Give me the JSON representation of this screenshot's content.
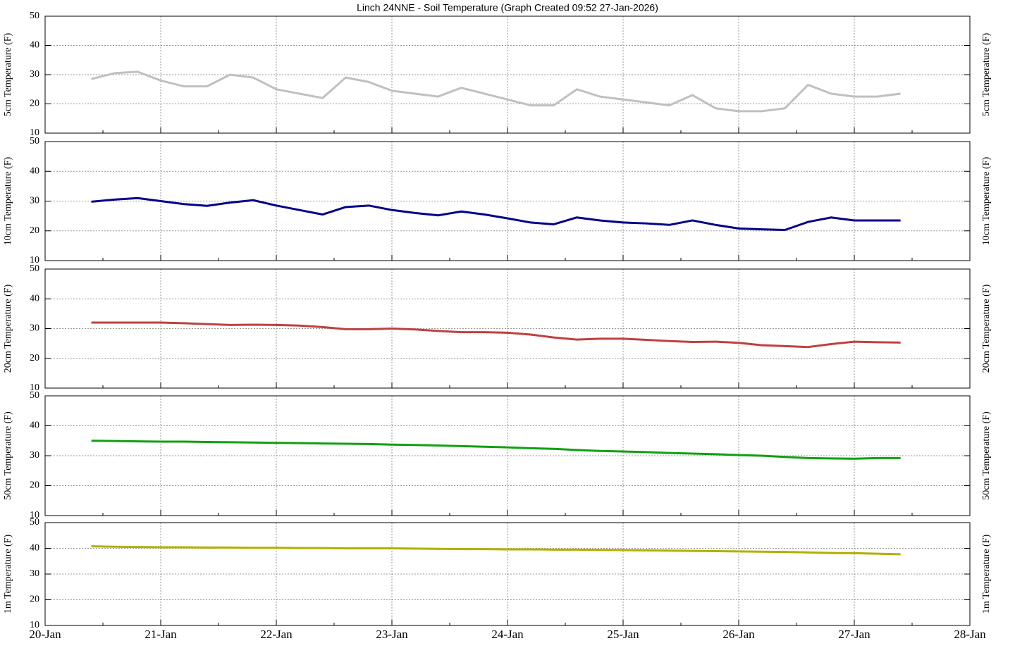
{
  "chart_data": [
    {
      "type": "line",
      "title": "Linch 24NNE - Soil Temperature (Graph Created 09:52 27-Jan-2026)",
      "ylabel": "5cm Temperature (F)",
      "x": [
        0.4,
        0.6,
        0.8,
        1.0,
        1.2,
        1.4,
        1.6,
        1.8,
        2.0,
        2.2,
        2.4,
        2.6,
        2.8,
        3.0,
        3.2,
        3.4,
        3.6,
        3.8,
        4.0,
        4.2,
        4.4,
        4.6,
        4.8,
        5.0,
        5.2,
        5.4,
        5.6,
        5.8,
        6.0,
        6.2,
        6.4,
        6.6,
        6.8,
        7.0,
        7.2,
        7.4
      ],
      "series": [
        {
          "color": "#c0c0c0",
          "values": [
            28.5,
            30.5,
            31,
            28,
            26,
            26,
            30,
            29,
            25,
            23.5,
            22,
            29,
            27.5,
            24.5,
            23.5,
            22.5,
            25.5,
            23.5,
            21.5,
            19.5,
            19.5,
            25,
            22.5,
            21.5,
            20.5,
            19.5,
            23,
            18.5,
            17.5,
            17.5,
            18.5,
            26.5,
            23.5,
            22.5,
            22.5,
            23.5
          ]
        }
      ],
      "xlim": [
        0,
        8
      ],
      "xticks": [
        0,
        1,
        2,
        3,
        4,
        5,
        6,
        7,
        8
      ],
      "ylim": [
        10,
        50
      ],
      "yticks": [
        10,
        20,
        30,
        40,
        50
      ],
      "grid": true
    },
    {
      "type": "line",
      "ylabel": "10cm Temperature (F)",
      "x": [
        0.4,
        0.6,
        0.8,
        1.0,
        1.2,
        1.4,
        1.6,
        1.8,
        2.0,
        2.2,
        2.4,
        2.6,
        2.8,
        3.0,
        3.2,
        3.4,
        3.6,
        3.8,
        4.0,
        4.2,
        4.4,
        4.6,
        4.8,
        5.0,
        5.2,
        5.4,
        5.6,
        5.8,
        6.0,
        6.2,
        6.4,
        6.6,
        6.8,
        7.0,
        7.2,
        7.4
      ],
      "series": [
        {
          "color": "#00008b",
          "values": [
            29.8,
            30.5,
            31,
            30,
            29,
            28.4,
            29.5,
            30.3,
            28.5,
            27,
            25.5,
            28,
            28.5,
            27,
            26,
            25.2,
            26.5,
            25.5,
            24.2,
            22.8,
            22.2,
            24.5,
            23.5,
            22.8,
            22.5,
            22,
            23.5,
            22,
            20.8,
            20.5,
            20.3,
            23,
            24.5,
            23.5,
            23.5,
            23.5
          ]
        }
      ],
      "xlim": [
        0,
        8
      ],
      "xticks": [
        0,
        1,
        2,
        3,
        4,
        5,
        6,
        7,
        8
      ],
      "ylim": [
        10,
        50
      ],
      "yticks": [
        10,
        20,
        30,
        40,
        50
      ],
      "grid": true
    },
    {
      "type": "line",
      "ylabel": "20cm Temperature (F)",
      "x": [
        0.4,
        0.6,
        0.8,
        1.0,
        1.2,
        1.4,
        1.6,
        1.8,
        2.0,
        2.2,
        2.4,
        2.6,
        2.8,
        3.0,
        3.2,
        3.4,
        3.6,
        3.8,
        4.0,
        4.2,
        4.4,
        4.6,
        4.8,
        5.0,
        5.2,
        5.4,
        5.6,
        5.8,
        6.0,
        6.2,
        6.4,
        6.6,
        6.8,
        7.0,
        7.2,
        7.4
      ],
      "series": [
        {
          "color": "#c04040",
          "values": [
            32,
            32,
            32,
            32,
            31.8,
            31.5,
            31.2,
            31.3,
            31.2,
            31,
            30.5,
            29.8,
            29.8,
            30,
            29.7,
            29.2,
            28.8,
            28.8,
            28.6,
            28,
            27,
            26.3,
            26.6,
            26.6,
            26.2,
            25.8,
            25.5,
            25.6,
            25.2,
            24.4,
            24.1,
            23.8,
            24.8,
            25.6,
            25.4,
            25.3
          ]
        }
      ],
      "xlim": [
        0,
        8
      ],
      "xticks": [
        0,
        1,
        2,
        3,
        4,
        5,
        6,
        7,
        8
      ],
      "ylim": [
        10,
        50
      ],
      "yticks": [
        10,
        20,
        30,
        40,
        50
      ],
      "grid": true
    },
    {
      "type": "line",
      "ylabel": "50cm Temperature (F)",
      "x": [
        0.4,
        0.6,
        0.8,
        1.0,
        1.2,
        1.4,
        1.6,
        1.8,
        2.0,
        2.2,
        2.4,
        2.6,
        2.8,
        3.0,
        3.2,
        3.4,
        3.6,
        3.8,
        4.0,
        4.2,
        4.4,
        4.6,
        4.8,
        5.0,
        5.2,
        5.4,
        5.6,
        5.8,
        6.0,
        6.2,
        6.4,
        6.6,
        6.8,
        7.0,
        7.2,
        7.4
      ],
      "series": [
        {
          "color": "#10a010",
          "values": [
            35,
            34.9,
            34.8,
            34.7,
            34.7,
            34.6,
            34.5,
            34.4,
            34.3,
            34.2,
            34.1,
            34,
            33.9,
            33.7,
            33.6,
            33.4,
            33.2,
            33,
            32.8,
            32.5,
            32.3,
            31.9,
            31.6,
            31.4,
            31.2,
            30.9,
            30.7,
            30.5,
            30.2,
            30,
            29.6,
            29.2,
            29.1,
            29,
            29.2,
            29.2
          ]
        }
      ],
      "xlim": [
        0,
        8
      ],
      "xticks": [
        0,
        1,
        2,
        3,
        4,
        5,
        6,
        7,
        8
      ],
      "ylim": [
        10,
        50
      ],
      "yticks": [
        10,
        20,
        30,
        40,
        50
      ],
      "grid": true
    },
    {
      "type": "line",
      "ylabel": "1m Temperature (F)",
      "x": [
        0.4,
        0.6,
        0.8,
        1.0,
        1.2,
        1.4,
        1.6,
        1.8,
        2.0,
        2.2,
        2.4,
        2.6,
        2.8,
        3.0,
        3.2,
        3.4,
        3.6,
        3.8,
        4.0,
        4.2,
        4.4,
        4.6,
        4.8,
        5.0,
        5.2,
        5.4,
        5.6,
        5.8,
        6.0,
        6.2,
        6.4,
        6.6,
        6.8,
        7.0,
        7.2,
        7.4
      ],
      "series": [
        {
          "color": "#b0b000",
          "values": [
            40.8,
            40.6,
            40.5,
            40.4,
            40.4,
            40.3,
            40.3,
            40.2,
            40.2,
            40.1,
            40.1,
            40,
            40,
            40,
            39.9,
            39.8,
            39.7,
            39.7,
            39.6,
            39.6,
            39.5,
            39.5,
            39.4,
            39.3,
            39.2,
            39.1,
            39,
            38.9,
            38.8,
            38.7,
            38.6,
            38.4,
            38.2,
            38.1,
            37.9,
            37.7
          ]
        }
      ],
      "xlim": [
        0,
        8
      ],
      "xticks": [
        {
          "value": 0,
          "label": "20-Jan"
        },
        {
          "value": 1,
          "label": "21-Jan"
        },
        {
          "value": 2,
          "label": "22-Jan"
        },
        {
          "value": 3,
          "label": "23-Jan"
        },
        {
          "value": 4,
          "label": "24-Jan"
        },
        {
          "value": 5,
          "label": "25-Jan"
        },
        {
          "value": 6,
          "label": "26-Jan"
        },
        {
          "value": 7,
          "label": "27-Jan"
        },
        {
          "value": 8,
          "label": "28-Jan"
        }
      ],
      "ylim": [
        10,
        50
      ],
      "yticks": [
        10,
        20,
        30,
        40,
        50
      ],
      "grid": true
    }
  ]
}
